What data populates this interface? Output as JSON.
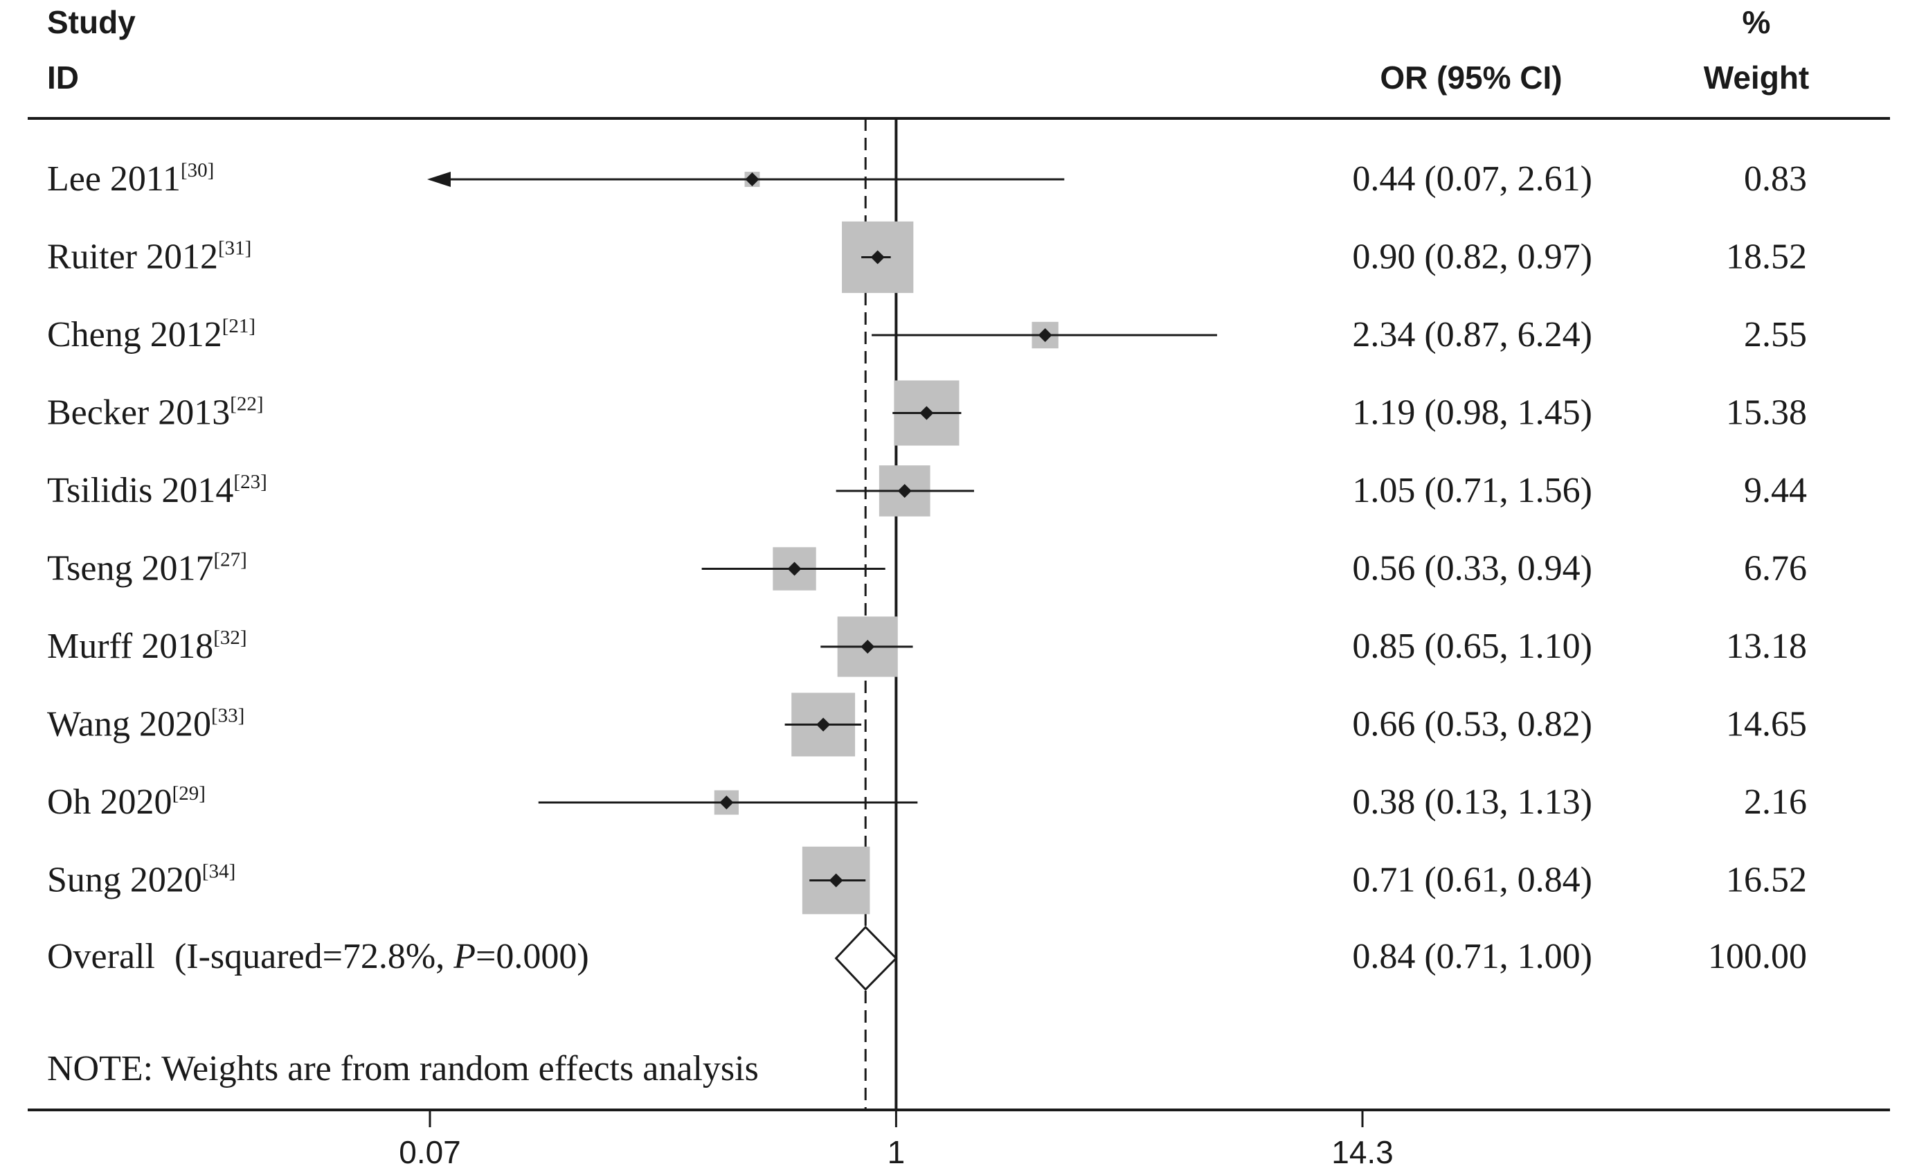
{
  "headers": {
    "study_line1": "Study",
    "study_line2": "ID",
    "or_ci": "OR (95% CI)",
    "weight_line1": "%",
    "weight_line2": "Weight"
  },
  "note": "NOTE: Weights are from random effects analysis",
  "colors": {
    "box": "#c0c0c0",
    "ink": "#1a1a1a"
  },
  "chart_data": {
    "type": "forest",
    "scale": "log",
    "x_ticks": [
      {
        "value": 0.07,
        "label": "0.07"
      },
      {
        "value": 1,
        "label": "1"
      },
      {
        "value": 14.3,
        "label": "14.3"
      }
    ],
    "xlim": [
      0.07,
      14.3
    ],
    "null_line": 1,
    "overall_line": 0.84,
    "studies": [
      {
        "name": "Lee 2011",
        "ref": "[30]",
        "or": 0.44,
        "lo": 0.07,
        "hi": 2.61,
        "ci_text": "0.44 (0.07, 2.61)",
        "weight": 0.83,
        "weight_text": "0.83",
        "lo_truncated": true
      },
      {
        "name": "Ruiter 2012",
        "ref": "[31]",
        "or": 0.9,
        "lo": 0.82,
        "hi": 0.97,
        "ci_text": "0.90 (0.82, 0.97)",
        "weight": 18.52,
        "weight_text": "18.52"
      },
      {
        "name": "Cheng 2012",
        "ref": "[21]",
        "or": 2.34,
        "lo": 0.87,
        "hi": 6.24,
        "ci_text": "2.34 (0.87, 6.24)",
        "weight": 2.55,
        "weight_text": "2.55"
      },
      {
        "name": "Becker 2013",
        "ref": "[22]",
        "or": 1.19,
        "lo": 0.98,
        "hi": 1.45,
        "ci_text": "1.19 (0.98, 1.45)",
        "weight": 15.38,
        "weight_text": "15.38"
      },
      {
        "name": "Tsilidis 2014",
        "ref": "[23]",
        "or": 1.05,
        "lo": 0.71,
        "hi": 1.56,
        "ci_text": "1.05 (0.71, 1.56)",
        "weight": 9.44,
        "weight_text": "9.44"
      },
      {
        "name": "Tseng 2017",
        "ref": "[27]",
        "or": 0.56,
        "lo": 0.33,
        "hi": 0.94,
        "ci_text": "0.56 (0.33, 0.94)",
        "weight": 6.76,
        "weight_text": "6.76"
      },
      {
        "name": "Murff 2018",
        "ref": "[32]",
        "or": 0.85,
        "lo": 0.65,
        "hi": 1.1,
        "ci_text": "0.85 (0.65, 1.10)",
        "weight": 13.18,
        "weight_text": "13.18"
      },
      {
        "name": "Wang 2020",
        "ref": "[33]",
        "or": 0.66,
        "lo": 0.53,
        "hi": 0.82,
        "ci_text": "0.66 (0.53, 0.82)",
        "weight": 14.65,
        "weight_text": "14.65"
      },
      {
        "name": "Oh 2020",
        "ref": "[29]",
        "or": 0.38,
        "lo": 0.13,
        "hi": 1.13,
        "ci_text": "0.38 (0.13, 1.13)",
        "weight": 2.16,
        "weight_text": "2.16"
      },
      {
        "name": "Sung 2020",
        "ref": "[34]",
        "or": 0.71,
        "lo": 0.61,
        "hi": 0.84,
        "ci_text": "0.71 (0.61, 0.84)",
        "weight": 16.52,
        "weight_text": "16.52"
      }
    ],
    "overall": {
      "label": "Overall",
      "heterogeneity_prefix": "(I-squared=72.8%, ",
      "p_symbol": "P",
      "p_suffix": "=0.000)",
      "or": 0.84,
      "lo": 0.71,
      "hi": 1.0,
      "ci_text": "0.84 (0.71, 1.00)",
      "weight_text": "100.00"
    }
  }
}
